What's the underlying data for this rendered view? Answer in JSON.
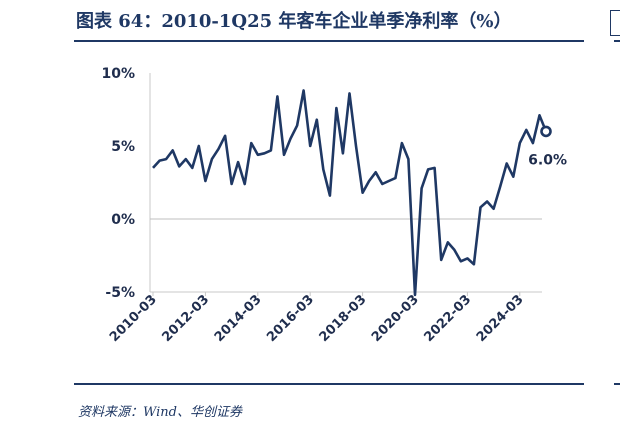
{
  "title": "图表 64：2010-1Q25 年客车企业单季净利率（%）",
  "source": "资料来源：Wind、华创证券",
  "chart_data": {
    "type": "line",
    "title": "图表 64：2010-1Q25 年客车企业单季净利率（%）",
    "xlabel": "",
    "ylabel": "",
    "ylim": [
      -5,
      10
    ],
    "yticks": [
      "10%",
      "5%",
      "0%",
      "-5%"
    ],
    "ytick_values": [
      10,
      5,
      0,
      -5
    ],
    "xtick_labels": [
      "2010-03",
      "2012-03",
      "2014-03",
      "2016-03",
      "2018-03",
      "2020-03",
      "2022-03",
      "2024-03"
    ],
    "x_start": "2010-03",
    "frequency": "quarterly",
    "line_color": "#1f3864",
    "grid": false,
    "zero_line": true,
    "series": [
      {
        "values": [
          3.5,
          4.0,
          4.1,
          4.7,
          3.6,
          4.1,
          3.5,
          5.0,
          2.6,
          4.1,
          4.8,
          5.7,
          2.4,
          3.9,
          2.4,
          5.2,
          4.4,
          4.5,
          4.7,
          8.4,
          4.4,
          5.5,
          6.4,
          8.8,
          5.0,
          6.8,
          3.4,
          1.6,
          7.6,
          4.5,
          8.6,
          5.0,
          1.8,
          2.6,
          3.2,
          2.4,
          2.6,
          2.8,
          5.2,
          4.1,
          -5.2,
          2.1,
          3.4,
          3.5,
          -2.8,
          -1.6,
          -2.1,
          -2.9,
          -2.7,
          -3.1,
          0.8,
          1.2,
          0.7,
          2.2,
          3.8,
          2.9,
          5.2,
          6.1,
          5.2,
          7.1,
          6.0
        ]
      }
    ],
    "annotation": {
      "text": "6.0%",
      "value": 6.0
    }
  }
}
